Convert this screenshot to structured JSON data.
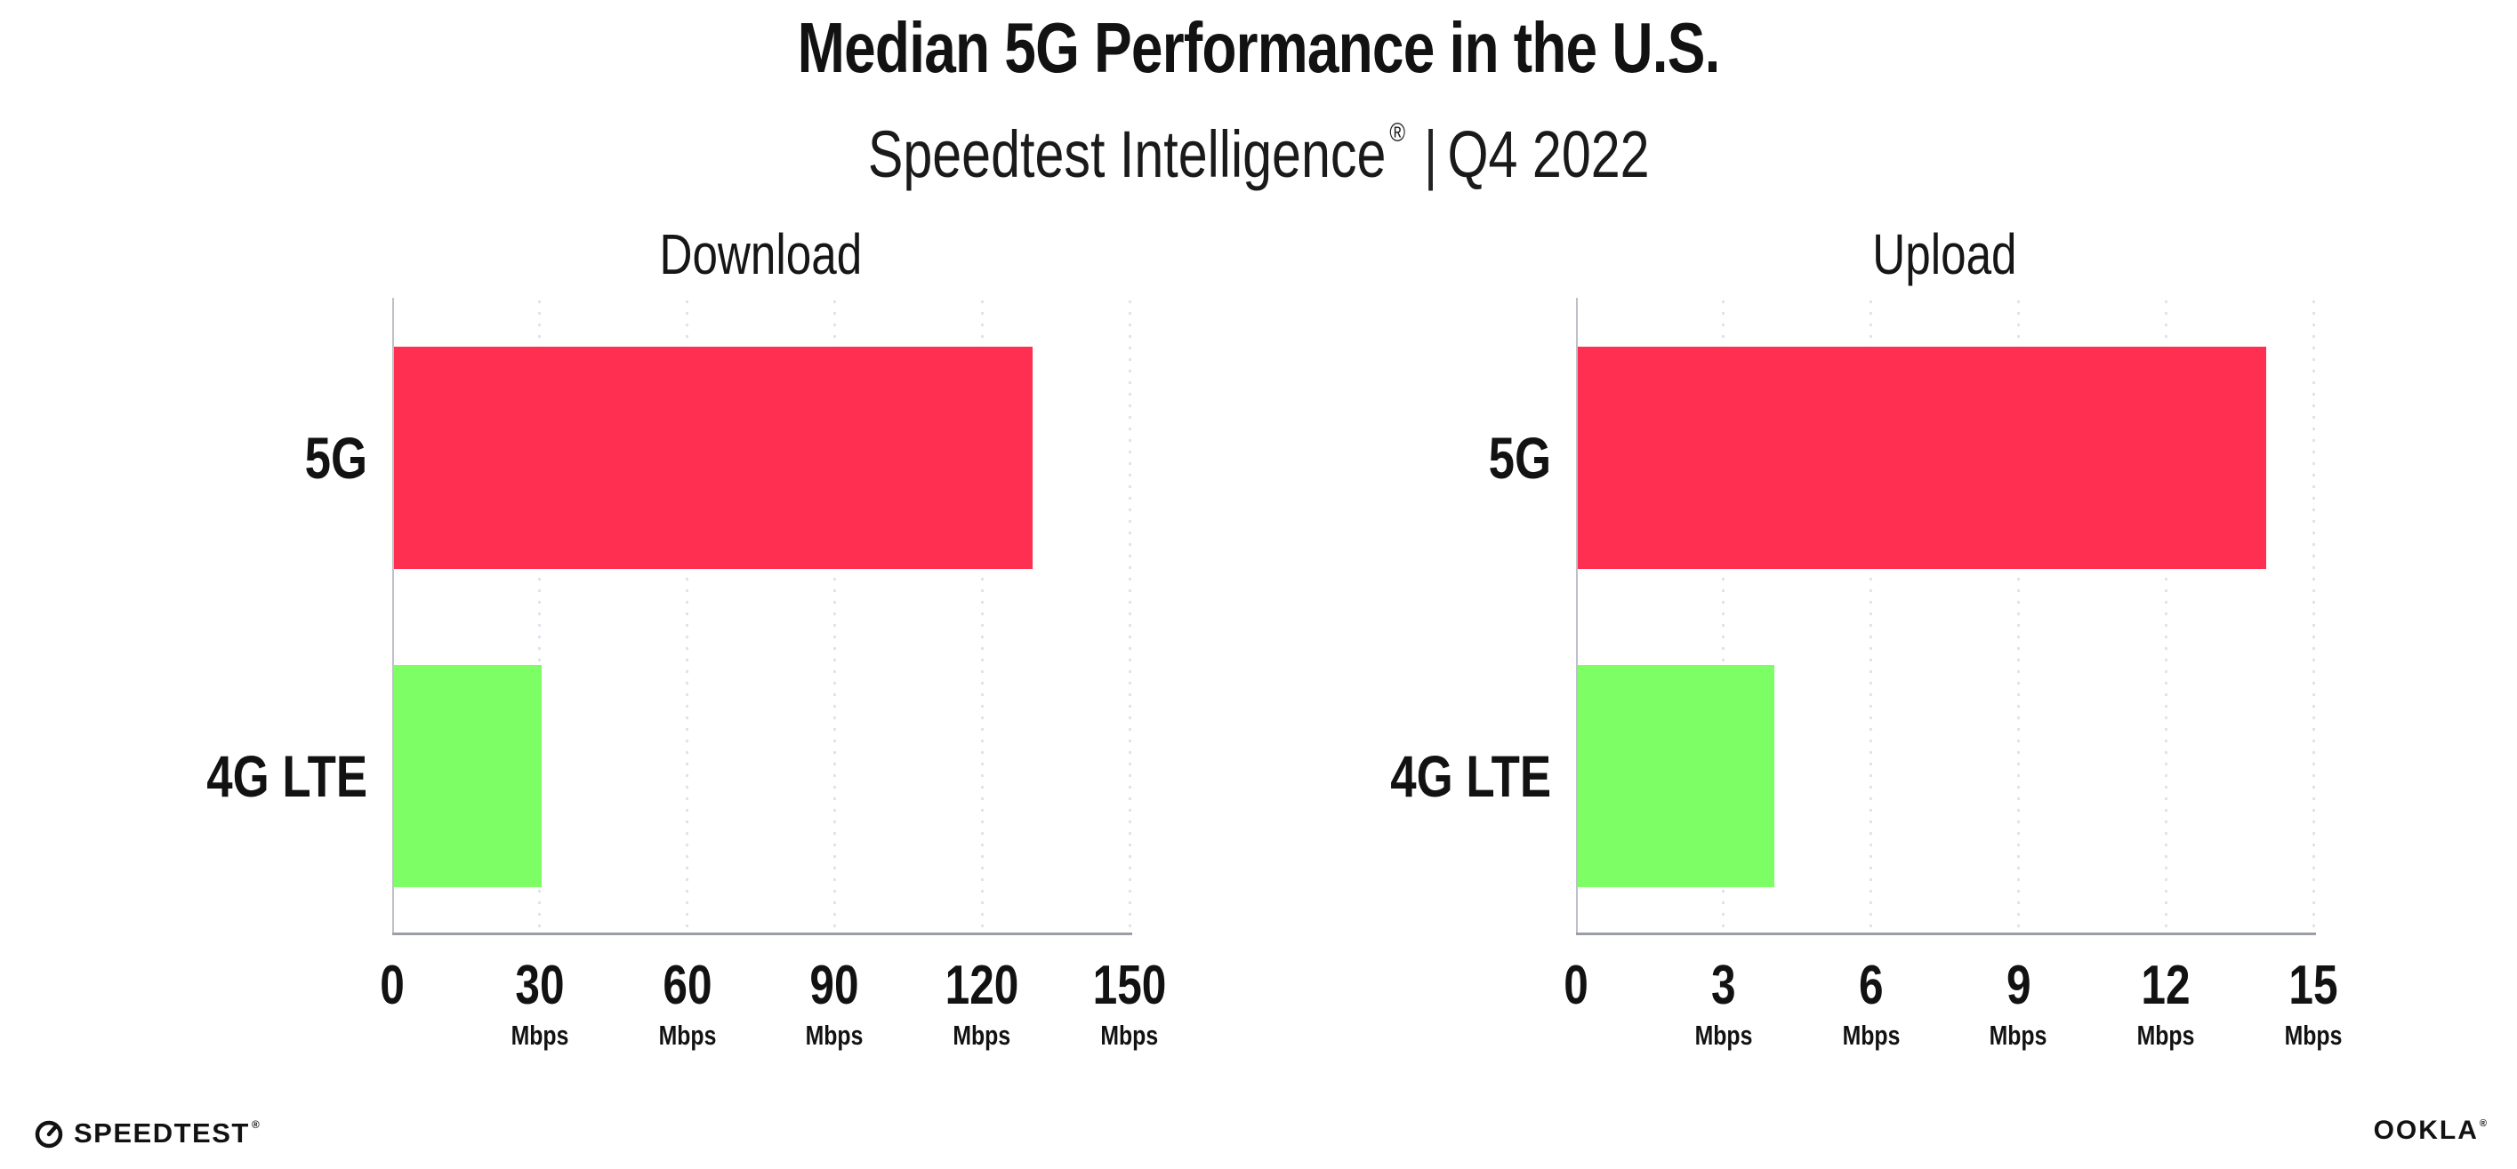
{
  "header": {
    "title": "Median 5G Performance in the U.S.",
    "subtitle_brand": "Speedtest Intelligence",
    "subtitle_registered": "®",
    "subtitle_separator": "|",
    "subtitle_period": "Q4 2022"
  },
  "chart_data": [
    {
      "type": "bar",
      "orientation": "horizontal",
      "title": "Download",
      "categories": [
        "5G",
        "4G LTE"
      ],
      "values": [
        130,
        30
      ],
      "unit": "Mbps",
      "xlim": [
        0,
        150
      ],
      "xticks": [
        0,
        30,
        60,
        90,
        120,
        150
      ],
      "bar_colors": [
        "#FF2F52",
        "#7EFE65"
      ],
      "grid": "dotted-vertical-gridlines",
      "legend": "none",
      "value_labels_shown": false
    },
    {
      "type": "bar",
      "orientation": "horizontal",
      "title": "Upload",
      "categories": [
        "5G",
        "4G LTE"
      ],
      "values": [
        14,
        4
      ],
      "unit": "Mbps",
      "xlim": [
        0,
        15
      ],
      "xticks": [
        0,
        3,
        6,
        9,
        12,
        15
      ],
      "bar_colors": [
        "#FF2F52",
        "#7EFE65"
      ],
      "grid": "dotted-vertical-gridlines",
      "legend": "none",
      "value_labels_shown": false
    }
  ],
  "colors": {
    "bar_5g": "#FF2F52",
    "bar_4g_lte": "#7EFE65",
    "axis_line": "#9b9ea6",
    "gridline_dot": "#e1e1ec",
    "text": "#121212"
  },
  "footer": {
    "speedtest_label": "SPEEDTEST",
    "speedtest_registered": "®",
    "ookla_label": "OOKLA",
    "ookla_registered": "®"
  }
}
